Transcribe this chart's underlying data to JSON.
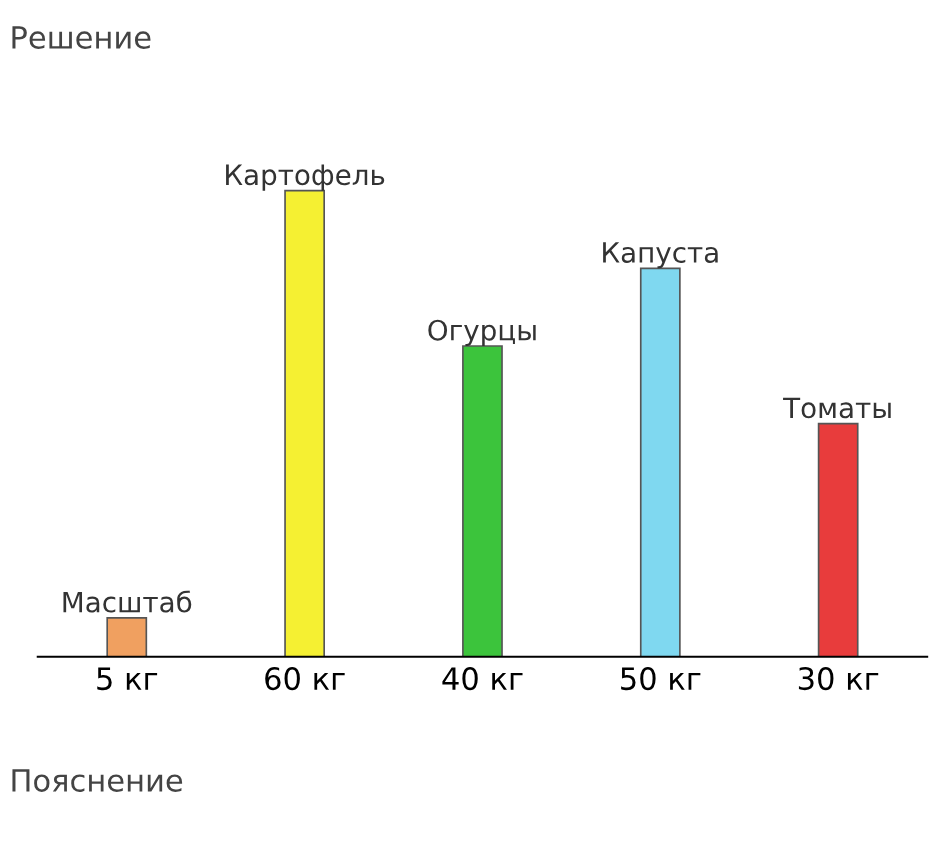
{
  "chart_data": {
    "type": "bar",
    "title": "Решение",
    "categories": [
      "Масштаб",
      "Картофель",
      "Огурцы",
      "Капуста",
      "Томаты"
    ],
    "values": [
      5,
      60,
      40,
      50,
      30
    ],
    "colors": [
      "#f0a060",
      "#f5f032",
      "#3cc43c",
      "#7fd8f0",
      "#e83c3c"
    ],
    "value_labels": [
      "5 кг",
      "60 кг",
      "40 кг",
      "50 кг",
      "30 кг"
    ],
    "annotations": [
      "Пояснение"
    ]
  }
}
